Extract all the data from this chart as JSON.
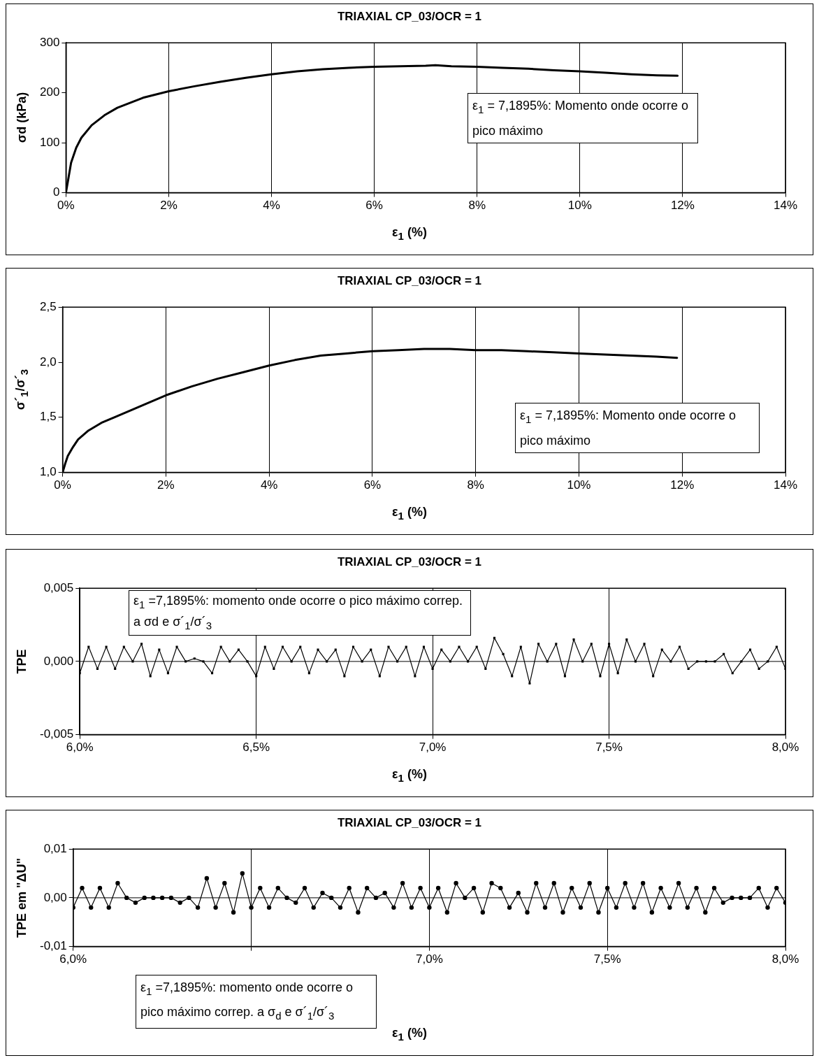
{
  "chart_data": [
    {
      "type": "line",
      "title": "TRIAXIAL CP_03/OCR = 1",
      "xlabel": "ε$_{1}$ (%)",
      "ylabel": "σd (kPa)",
      "color": "#000000",
      "line_style": "solid",
      "grid": "x",
      "x": [
        0,
        0.05,
        0.1,
        0.2,
        0.3,
        0.5,
        0.75,
        1,
        1.5,
        2,
        2.5,
        3,
        3.5,
        4,
        4.5,
        5,
        5.5,
        6,
        6.5,
        7,
        7.19,
        7.5,
        8,
        8.5,
        9,
        9.5,
        10,
        10.5,
        11,
        11.5,
        11.9
      ],
      "values": [
        0,
        30,
        60,
        90,
        110,
        135,
        155,
        170,
        190,
        203,
        213,
        222,
        230,
        237,
        243,
        247,
        250,
        252,
        253,
        254,
        255,
        253,
        252,
        250,
        248,
        245,
        243,
        240,
        237,
        235,
        234
      ],
      "xlim": [
        0,
        14
      ],
      "xticks": [
        {
          "value": 0,
          "label": "0%"
        },
        {
          "value": 2,
          "label": "2%"
        },
        {
          "value": 4,
          "label": "4%"
        },
        {
          "value": 6,
          "label": "6%"
        },
        {
          "value": 8,
          "label": "8%"
        },
        {
          "value": 10,
          "label": "10%"
        },
        {
          "value": 12,
          "label": "12%"
        },
        {
          "value": 14,
          "label": "14%"
        }
      ],
      "ylim": [
        0,
        300
      ],
      "yticks": [
        0,
        100,
        200,
        300
      ],
      "annotations": [
        "ε$_{1}$ = 7,1895%: Momento onde ocorre o pico máximo"
      ]
    },
    {
      "type": "line",
      "title": "TRIAXIAL CP_03/OCR = 1",
      "xlabel": "ε$_{1}$ (%)",
      "ylabel": "σ´$_{1}$/σ´$_{3}$",
      "color": "#000000",
      "line_style": "solid",
      "grid": "x",
      "x": [
        0,
        0.05,
        0.1,
        0.2,
        0.3,
        0.5,
        0.75,
        1,
        1.5,
        2,
        2.5,
        3,
        3.5,
        4,
        4.5,
        5,
        5.5,
        6,
        6.5,
        7,
        7.5,
        8,
        8.5,
        9,
        9.5,
        10,
        10.5,
        11,
        11.5,
        11.9
      ],
      "values": [
        1.0,
        1.08,
        1.15,
        1.23,
        1.3,
        1.38,
        1.45,
        1.5,
        1.6,
        1.7,
        1.78,
        1.85,
        1.91,
        1.97,
        2.02,
        2.06,
        2.08,
        2.1,
        2.11,
        2.12,
        2.12,
        2.11,
        2.11,
        2.1,
        2.09,
        2.08,
        2.07,
        2.06,
        2.05,
        2.04
      ],
      "xlim": [
        0,
        14
      ],
      "xticks": [
        {
          "value": 0,
          "label": "0%"
        },
        {
          "value": 2,
          "label": "2%"
        },
        {
          "value": 4,
          "label": "4%"
        },
        {
          "value": 6,
          "label": "6%"
        },
        {
          "value": 8,
          "label": "8%"
        },
        {
          "value": 10,
          "label": "10%"
        },
        {
          "value": 12,
          "label": "12%"
        },
        {
          "value": 14,
          "label": "14%"
        }
      ],
      "ylim": [
        1.0,
        2.5
      ],
      "yticks": [
        {
          "value": 1.0,
          "label": "1,0"
        },
        {
          "value": 1.5,
          "label": "1,5"
        },
        {
          "value": 2.0,
          "label": "2,0"
        },
        {
          "value": 2.5,
          "label": "2,5"
        }
      ],
      "annotations": [
        "ε$_{1}$ = 7,1895%: Momento onde ocorre o pico máximo"
      ]
    },
    {
      "type": "line",
      "title": "TRIAXIAL CP_03/OCR = 1",
      "xlabel": "ε$_{1}$ (%)",
      "ylabel": "TPE",
      "color": "#000000",
      "line_style": "solid",
      "marker": "square",
      "grid": "x",
      "x": [
        6.0,
        6.025,
        6.05,
        6.075,
        6.1,
        6.125,
        6.15,
        6.175,
        6.2,
        6.225,
        6.25,
        6.275,
        6.3,
        6.325,
        6.35,
        6.375,
        6.4,
        6.425,
        6.45,
        6.475,
        6.5,
        6.525,
        6.55,
        6.575,
        6.6,
        6.625,
        6.65,
        6.675,
        6.7,
        6.725,
        6.75,
        6.775,
        6.8,
        6.825,
        6.85,
        6.875,
        6.9,
        6.925,
        6.95,
        6.975,
        7.0,
        7.025,
        7.05,
        7.075,
        7.1,
        7.125,
        7.15,
        7.175,
        7.2,
        7.225,
        7.25,
        7.275,
        7.3,
        7.325,
        7.35,
        7.375,
        7.4,
        7.425,
        7.45,
        7.475,
        7.5,
        7.525,
        7.55,
        7.575,
        7.6,
        7.625,
        7.65,
        7.675,
        7.7,
        7.725,
        7.75,
        7.775,
        7.8,
        7.825,
        7.85,
        7.875,
        7.9,
        7.925,
        7.95,
        7.975,
        8.0
      ],
      "values": [
        -0.0008,
        0.001,
        -0.0005,
        0.001,
        -0.0005,
        0.001,
        0.0,
        0.0012,
        -0.001,
        0.0008,
        -0.0008,
        0.001,
        0.0,
        0.0002,
        0.0,
        -0.0008,
        0.001,
        0.0,
        0.0008,
        0.0,
        -0.001,
        0.001,
        -0.0005,
        0.001,
        0.0,
        0.001,
        -0.0008,
        0.0008,
        0.0,
        0.0008,
        -0.001,
        0.001,
        0.0,
        0.0008,
        -0.001,
        0.001,
        0.0,
        0.001,
        -0.001,
        0.001,
        -0.0005,
        0.0008,
        0.0,
        0.001,
        0.0,
        0.001,
        -0.0005,
        0.0016,
        0.0005,
        -0.001,
        0.001,
        -0.0015,
        0.0012,
        0.0,
        0.0012,
        -0.001,
        0.0015,
        0.0,
        0.0012,
        -0.001,
        0.0012,
        -0.0008,
        0.0015,
        0.0,
        0.0012,
        -0.001,
        0.0008,
        0.0,
        0.001,
        -0.0005,
        0.0,
        0.0,
        0.0,
        0.0005,
        -0.0008,
        0.0,
        0.0008,
        -0.0005,
        0.0,
        0.001,
        -0.0005
      ],
      "xlim": [
        6.0,
        8.0
      ],
      "xticks": [
        {
          "value": 6.0,
          "label": "6,0%"
        },
        {
          "value": 6.5,
          "label": "6,5%"
        },
        {
          "value": 7.0,
          "label": "7,0%"
        },
        {
          "value": 7.5,
          "label": "7,5%"
        },
        {
          "value": 8.0,
          "label": "8,0%"
        }
      ],
      "ylim": [
        -0.005,
        0.005
      ],
      "yticks": [
        {
          "value": -0.005,
          "label": "-0,005"
        },
        {
          "value": 0,
          "label": "0,000"
        },
        {
          "value": 0.005,
          "label": "0,005"
        }
      ],
      "ref_lines": [
        {
          "axis": "y",
          "value": 0
        }
      ],
      "annotations": [
        "ε$_{1}$ =7,1895%: momento onde ocorre o pico máximo correp. a σd e σ´$_{1}$/σ´$_{3}$"
      ]
    },
    {
      "type": "line",
      "title": "TRIAXIAL CP_03/OCR = 1",
      "xlabel": "ε$_{1}$ (%)",
      "ylabel": "TPE em \"ΔU\"",
      "color": "#000000",
      "line_style": "solid",
      "marker": "circle",
      "grid": "x",
      "x": [
        6.0,
        6.025,
        6.05,
        6.075,
        6.1,
        6.125,
        6.15,
        6.175,
        6.2,
        6.225,
        6.25,
        6.275,
        6.3,
        6.325,
        6.35,
        6.375,
        6.4,
        6.425,
        6.45,
        6.475,
        6.5,
        6.525,
        6.55,
        6.575,
        6.6,
        6.625,
        6.65,
        6.675,
        6.7,
        6.725,
        6.75,
        6.775,
        6.8,
        6.825,
        6.85,
        6.875,
        6.9,
        6.925,
        6.95,
        6.975,
        7.0,
        7.025,
        7.05,
        7.075,
        7.1,
        7.125,
        7.15,
        7.175,
        7.2,
        7.225,
        7.25,
        7.275,
        7.3,
        7.325,
        7.35,
        7.375,
        7.4,
        7.425,
        7.45,
        7.475,
        7.5,
        7.525,
        7.55,
        7.575,
        7.6,
        7.625,
        7.65,
        7.675,
        7.7,
        7.725,
        7.75,
        7.775,
        7.8,
        7.825,
        7.85,
        7.875,
        7.9,
        7.925,
        7.95,
        7.975,
        8.0
      ],
      "values": [
        -0.002,
        0.002,
        -0.002,
        0.002,
        -0.002,
        0.003,
        0.0,
        -0.001,
        0.0,
        0.0,
        0.0,
        0.0,
        -0.001,
        0.0,
        -0.002,
        0.004,
        -0.002,
        0.003,
        -0.003,
        0.005,
        -0.002,
        0.002,
        -0.002,
        0.002,
        0.0,
        -0.001,
        0.002,
        -0.002,
        0.001,
        0.0,
        -0.002,
        0.002,
        -0.003,
        0.002,
        0.0,
        0.001,
        -0.002,
        0.003,
        -0.002,
        0.002,
        -0.002,
        0.002,
        -0.003,
        0.003,
        0.0,
        0.002,
        -0.003,
        0.003,
        0.002,
        -0.002,
        0.001,
        -0.003,
        0.003,
        -0.002,
        0.003,
        -0.003,
        0.002,
        -0.002,
        0.003,
        -0.003,
        0.002,
        -0.002,
        0.003,
        -0.002,
        0.003,
        -0.003,
        0.002,
        -0.002,
        0.003,
        -0.002,
        0.002,
        -0.003,
        0.002,
        -0.001,
        0.0,
        0.0,
        0.0,
        0.002,
        -0.002,
        0.002,
        -0.001
      ],
      "xlim": [
        6.0,
        8.0
      ],
      "xticks": [
        {
          "value": 6.0,
          "label": "6,0%"
        },
        {
          "value": 6.5,
          "label": null
        },
        {
          "value": 7.0,
          "label": "7,0%"
        },
        {
          "value": 7.5,
          "label": "7,5%"
        },
        {
          "value": 8.0,
          "label": "8,0%"
        }
      ],
      "ylim": [
        -0.01,
        0.01
      ],
      "yticks": [
        {
          "value": -0.01,
          "label": "-0,01"
        },
        {
          "value": 0,
          "label": "0,00"
        },
        {
          "value": 0.01,
          "label": "0,01"
        }
      ],
      "ref_lines": [
        {
          "axis": "y",
          "value": 0
        }
      ],
      "annotations": [
        "ε$_{1}$ =7,1895%: momento onde ocorre o pico máximo correp. a σ$_{d}$ e σ´$_{1}$/σ´$_{3}$"
      ]
    }
  ]
}
